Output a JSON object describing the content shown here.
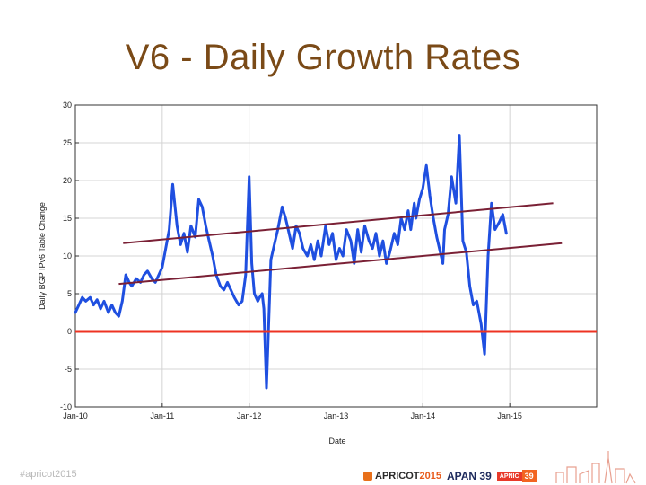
{
  "slide": {
    "title": "V6 - Daily Growth Rates",
    "footer_left": "#apricot2015"
  },
  "logos": {
    "apricot_name": "APRICOT",
    "apricot_year": "2015",
    "apan": "APAN 39",
    "apnic_label": "APNIC",
    "apnic_number": "39"
  },
  "colors": {
    "title": "#7a4a17",
    "series": "#1f4fe0",
    "zero_line": "#ee3322",
    "trend": "#7a2035"
  },
  "chart_data": {
    "type": "line",
    "title": "",
    "xlabel": "Date",
    "ylabel": "Daily BGP IPv6 Table Change",
    "xlim": [
      2010.0,
      2016.0
    ],
    "ylim": [
      -10,
      30
    ],
    "yticks": [
      30,
      25,
      20,
      15,
      10,
      5,
      0,
      -5,
      -10
    ],
    "xticks": [
      {
        "value": 2010.0,
        "label": "Jan-10"
      },
      {
        "value": 2011.0,
        "label": "Jan-11"
      },
      {
        "value": 2012.0,
        "label": "Jan-12"
      },
      {
        "value": 2013.0,
        "label": "Jan-13"
      },
      {
        "value": 2014.0,
        "label": "Jan-14"
      },
      {
        "value": 2015.0,
        "label": "Jan-15"
      }
    ],
    "grid": true,
    "series": [
      {
        "name": "Daily BGP IPv6 Table Change",
        "x": [
          2010.0,
          2010.04,
          2010.08,
          2010.12,
          2010.17,
          2010.21,
          2010.25,
          2010.29,
          2010.33,
          2010.38,
          2010.42,
          2010.46,
          2010.5,
          2010.54,
          2010.58,
          2010.62,
          2010.65,
          2010.7,
          2010.75,
          2010.79,
          2010.83,
          2010.88,
          2010.92,
          2010.96,
          2011.0,
          2011.04,
          2011.08,
          2011.12,
          2011.17,
          2011.21,
          2011.25,
          2011.29,
          2011.33,
          2011.38,
          2011.42,
          2011.46,
          2011.5,
          2011.54,
          2011.58,
          2011.62,
          2011.67,
          2011.71,
          2011.75,
          2011.79,
          2011.83,
          2011.88,
          2011.92,
          2011.96,
          2012.0,
          2012.03,
          2012.06,
          2012.1,
          2012.12,
          2012.15,
          2012.17,
          2012.2,
          2012.25,
          2012.29,
          2012.33,
          2012.38,
          2012.42,
          2012.46,
          2012.5,
          2012.54,
          2012.58,
          2012.62,
          2012.67,
          2012.71,
          2012.75,
          2012.79,
          2012.83,
          2012.88,
          2012.92,
          2012.96,
          2013.0,
          2013.04,
          2013.08,
          2013.12,
          2013.17,
          2013.21,
          2013.25,
          2013.29,
          2013.33,
          2013.38,
          2013.42,
          2013.46,
          2013.5,
          2013.54,
          2013.58,
          2013.62,
          2013.67,
          2013.71,
          2013.75,
          2013.79,
          2013.83,
          2013.86,
          2013.9,
          2013.92,
          2013.96,
          2014.0,
          2014.04,
          2014.08,
          2014.12,
          2014.16,
          2014.2,
          2014.23,
          2014.25,
          2014.29,
          2014.33,
          2014.38,
          2014.42,
          2014.46,
          2014.5,
          2014.54,
          2014.58,
          2014.62,
          2014.67,
          2014.71,
          2014.75,
          2014.79,
          2014.83,
          2014.88,
          2014.92,
          2014.96
        ],
        "values": [
          2.5,
          3.5,
          4.5,
          4.0,
          4.5,
          3.5,
          4.2,
          3.0,
          4.0,
          2.5,
          3.5,
          2.5,
          2.0,
          4.0,
          7.5,
          6.5,
          6.0,
          7.0,
          6.5,
          7.5,
          8.0,
          7.0,
          6.5,
          7.5,
          8.5,
          11.0,
          13.5,
          19.5,
          14.0,
          11.5,
          13.0,
          10.5,
          14.0,
          12.5,
          17.5,
          16.5,
          14.0,
          12.0,
          10.0,
          7.5,
          6.0,
          5.5,
          6.5,
          5.5,
          4.5,
          3.5,
          4.0,
          7.5,
          20.5,
          9.0,
          5.0,
          4.0,
          4.5,
          5.0,
          3.0,
          -7.5,
          9.5,
          11.5,
          13.5,
          16.5,
          15.0,
          13.0,
          11.0,
          14.0,
          13.0,
          11.0,
          10.0,
          11.5,
          9.5,
          12.0,
          10.0,
          14.0,
          11.5,
          13.0,
          9.5,
          11.0,
          10.0,
          13.5,
          12.0,
          9.0,
          13.5,
          10.5,
          14.0,
          12.0,
          11.0,
          13.0,
          10.0,
          12.0,
          9.0,
          10.5,
          13.0,
          11.5,
          15.0,
          13.5,
          16.0,
          13.5,
          17.0,
          15.0,
          17.5,
          19.0,
          22.0,
          18.0,
          15.0,
          12.5,
          10.5,
          9.0,
          13.5,
          15.5,
          20.5,
          17.0,
          26.0,
          12.0,
          10.5,
          6.0,
          3.5,
          4.0,
          1.0,
          -3.0,
          10.0,
          17.0,
          13.5,
          14.5,
          15.5,
          13.0
        ]
      }
    ],
    "reference_lines": [
      {
        "name": "zero",
        "y": 0
      },
      {
        "name": "trend-upper",
        "x": [
          2010.55,
          2015.5
        ],
        "y": [
          11.7,
          17.0
        ]
      },
      {
        "name": "trend-lower",
        "x": [
          2010.5,
          2015.6
        ],
        "y": [
          6.3,
          11.7
        ]
      }
    ]
  }
}
